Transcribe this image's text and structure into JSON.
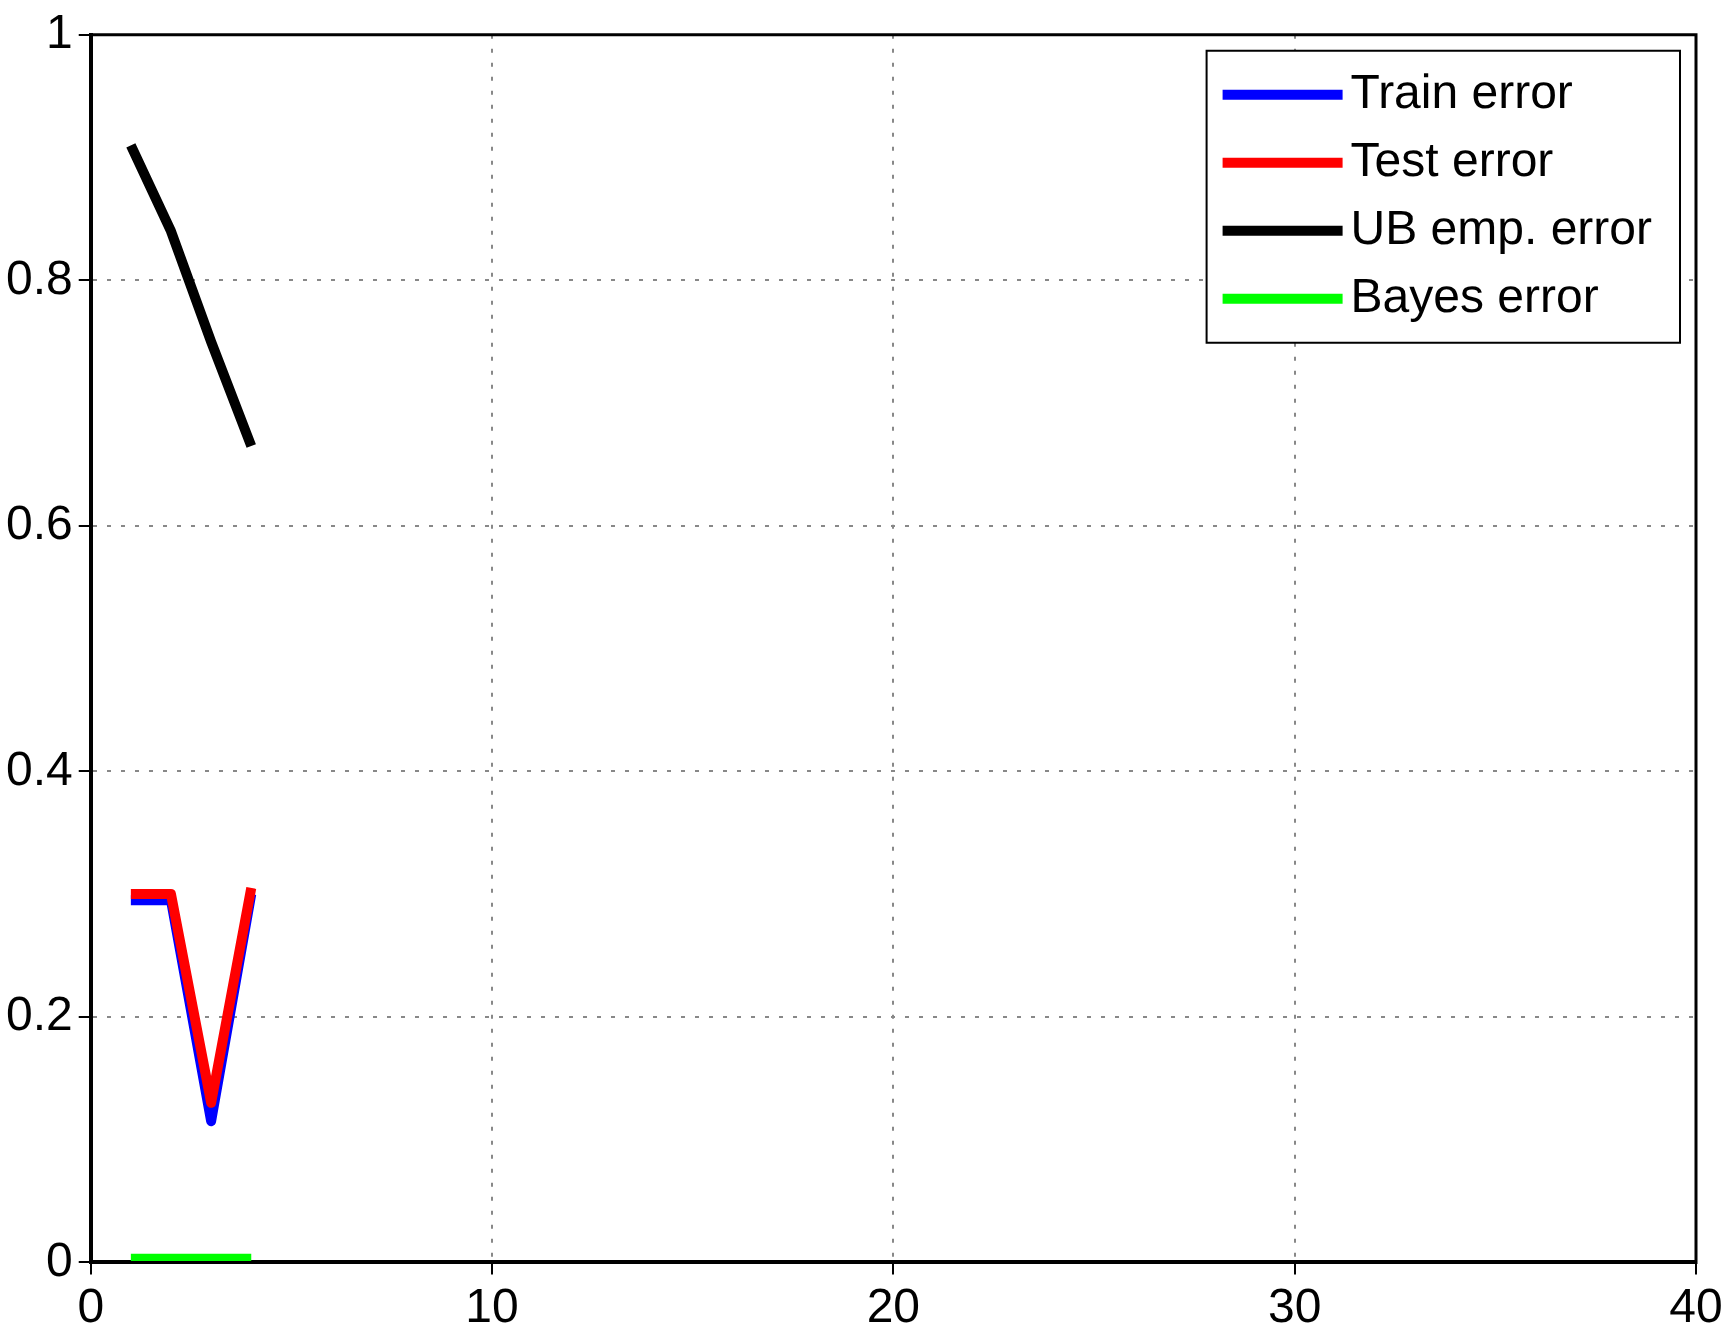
{
  "chart_data": {
    "type": "line",
    "x": [
      1,
      2,
      3,
      4
    ],
    "series": [
      {
        "name": "Train error",
        "color": "#0000ff",
        "values": [
          0.295,
          0.295,
          0.115,
          0.3
        ]
      },
      {
        "name": "Test error",
        "color": "#ff0000",
        "values": [
          0.3,
          0.3,
          0.13,
          0.305
        ]
      },
      {
        "name": "UB emp. error",
        "color": "#000000",
        "values": [
          0.91,
          0.84,
          0.75,
          0.665
        ]
      },
      {
        "name": "Bayes error",
        "color": "#00ff00",
        "values": [
          0.003,
          0.003,
          0.003,
          0.003
        ]
      }
    ],
    "xlim": [
      0,
      40
    ],
    "xticks": [
      0,
      10,
      20,
      30,
      40
    ],
    "ylim": [
      0,
      1
    ],
    "yticks": [
      0,
      0.2,
      0.4,
      0.6,
      0.8,
      1
    ],
    "grid": true,
    "legend": "top right",
    "marker": "none",
    "line_style": "solid"
  }
}
